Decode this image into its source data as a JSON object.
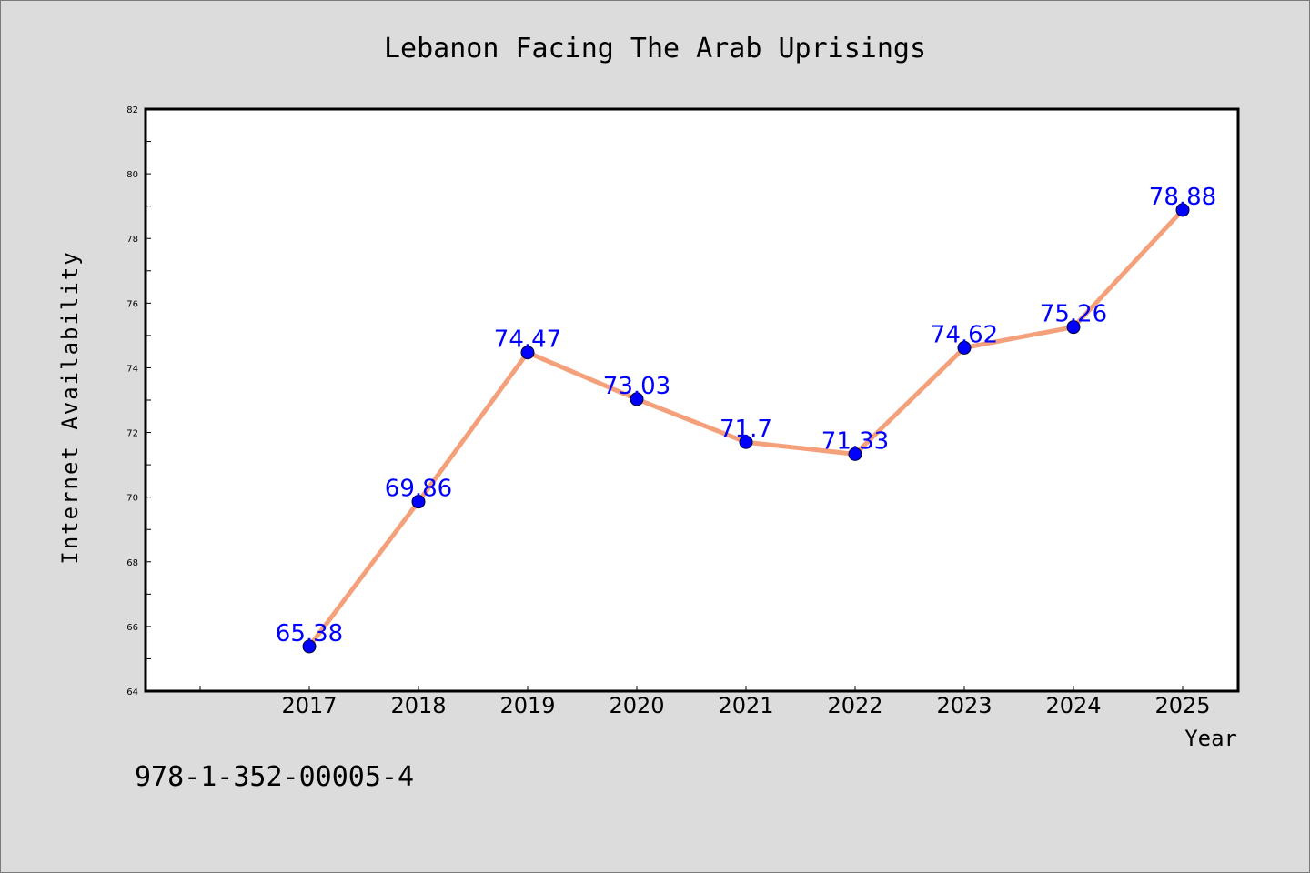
{
  "chart_data": {
    "type": "line",
    "title": "Lebanon Facing The Arab Uprisings",
    "xlabel": "Year",
    "ylabel": "Internet Availability",
    "categories": [
      "2017",
      "2018",
      "2019",
      "2020",
      "2021",
      "2022",
      "2023",
      "2024",
      "2025"
    ],
    "values": [
      65.38,
      69.86,
      74.47,
      73.03,
      71.7,
      71.33,
      74.62,
      75.26,
      78.88
    ],
    "data_labels": [
      "65.38",
      "69.86",
      "74.47",
      "73.03",
      "71.7",
      "71.33",
      "74.62",
      "75.26",
      "78.88"
    ],
    "ylim": [
      64,
      82
    ],
    "yticks": [
      "64",
      "66",
      "68",
      "70",
      "72",
      "74",
      "76",
      "78",
      "80",
      "82"
    ],
    "grid": false,
    "legend": "none",
    "line_color": "#f4a07a",
    "marker_color": "#0000ff"
  },
  "footer": {
    "isbn": "978-1-352-00005-4"
  }
}
